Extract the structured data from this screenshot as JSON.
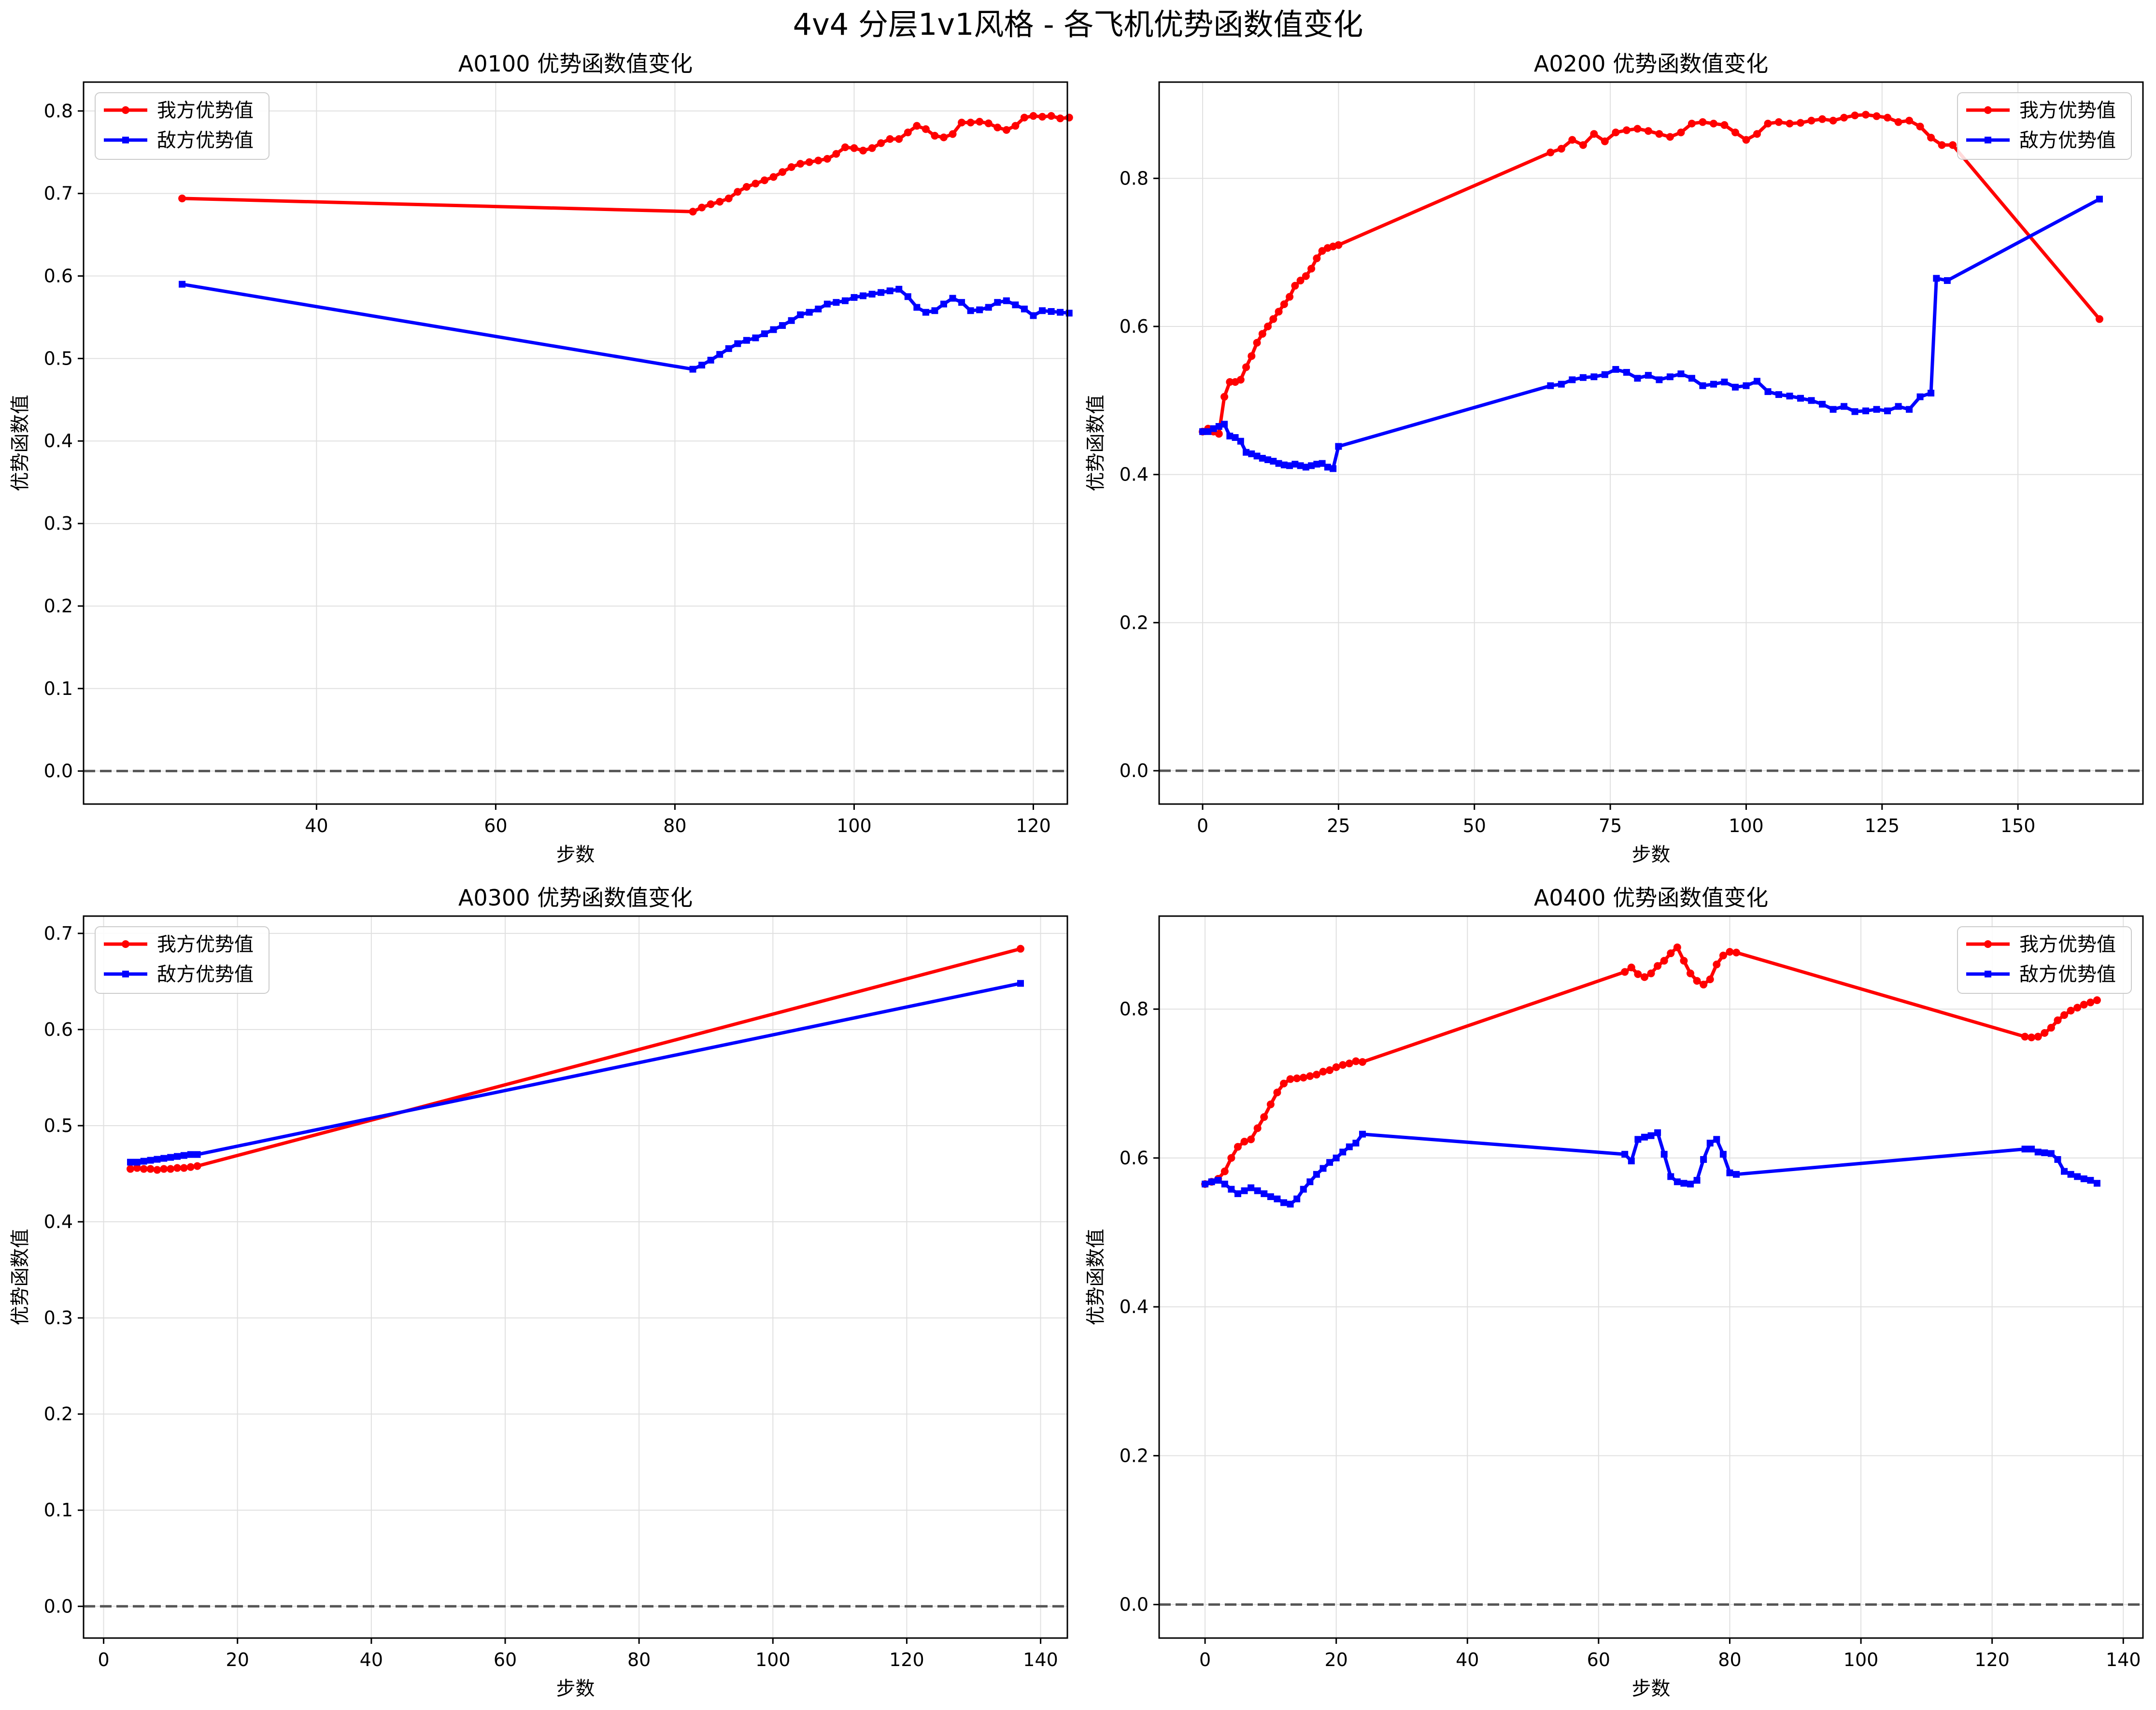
{
  "title": "4v4 分层1v1风格 - 各飞机优势函数值变化",
  "colors": {
    "own": "#ff0000",
    "enemy": "#0000ff",
    "grid": "#e0e0e0",
    "zero_line": "#555555"
  },
  "chart_data": [
    {
      "type": "line",
      "title": "A0100 优势函数值变化",
      "xlabel": "步数",
      "ylabel": "优势函数值",
      "xlim": [
        14,
        123.8
      ],
      "ylim": [
        -0.04,
        0.835
      ],
      "xticks": [
        40,
        60,
        80,
        100,
        120
      ],
      "yticks": [
        0.0,
        0.1,
        0.2,
        0.3,
        0.4,
        0.5,
        0.6,
        0.7,
        0.8
      ],
      "grid": true,
      "legend": "top-left",
      "zero_line": true,
      "series": [
        {
          "name": "我方优势值",
          "color": "#ff0000",
          "marker": "circle",
          "x": [
            25,
            82,
            83,
            84,
            85,
            86,
            87,
            88,
            89,
            90,
            91,
            92,
            93,
            94,
            95,
            96,
            97,
            98,
            99,
            100,
            101,
            102,
            103,
            104,
            105,
            106,
            107,
            108,
            109,
            110,
            111,
            112,
            113,
            114,
            115,
            116,
            117,
            118,
            119,
            120,
            121,
            122,
            123,
            124
          ],
          "y": [
            0.694,
            0.678,
            0.683,
            0.687,
            0.69,
            0.694,
            0.702,
            0.708,
            0.712,
            0.716,
            0.72,
            0.726,
            0.732,
            0.736,
            0.738,
            0.74,
            0.742,
            0.748,
            0.756,
            0.755,
            0.752,
            0.755,
            0.761,
            0.766,
            0.766,
            0.774,
            0.782,
            0.778,
            0.77,
            0.768,
            0.772,
            0.786,
            0.786,
            0.787,
            0.785,
            0.78,
            0.777,
            0.782,
            0.792,
            0.794,
            0.793,
            0.794,
            0.791,
            0.792
          ]
        },
        {
          "name": "敌方优势值",
          "color": "#0000ff",
          "marker": "square",
          "x": [
            25,
            82,
            83,
            84,
            85,
            86,
            87,
            88,
            89,
            90,
            91,
            92,
            93,
            94,
            95,
            96,
            97,
            98,
            99,
            100,
            101,
            102,
            103,
            104,
            105,
            106,
            107,
            108,
            109,
            110,
            111,
            112,
            113,
            114,
            115,
            116,
            117,
            118,
            119,
            120,
            121,
            122,
            123,
            124
          ],
          "y": [
            0.59,
            0.487,
            0.492,
            0.498,
            0.505,
            0.512,
            0.518,
            0.522,
            0.525,
            0.53,
            0.535,
            0.54,
            0.546,
            0.553,
            0.556,
            0.56,
            0.566,
            0.568,
            0.57,
            0.574,
            0.576,
            0.578,
            0.58,
            0.582,
            0.584,
            0.575,
            0.562,
            0.556,
            0.558,
            0.566,
            0.573,
            0.568,
            0.558,
            0.559,
            0.562,
            0.568,
            0.57,
            0.565,
            0.56,
            0.552,
            0.558,
            0.557,
            0.556,
            0.555
          ]
        }
      ]
    },
    {
      "type": "line",
      "title": "A0200 优势函数值变化",
      "xlabel": "步数",
      "ylabel": "优势函数值",
      "xlim": [
        -8,
        173
      ],
      "ylim": [
        -0.045,
        0.93
      ],
      "xticks": [
        0,
        25,
        50,
        75,
        100,
        125,
        150
      ],
      "yticks": [
        0.0,
        0.2,
        0.4,
        0.6,
        0.8
      ],
      "grid": true,
      "legend": "top-right",
      "zero_line": true,
      "series": [
        {
          "name": "我方优势值",
          "color": "#ff0000",
          "marker": "circle",
          "x": [
            0,
            1,
            2,
            3,
            4,
            5,
            6,
            7,
            8,
            9,
            10,
            11,
            12,
            13,
            14,
            15,
            16,
            17,
            18,
            19,
            20,
            21,
            22,
            23,
            24,
            25,
            64,
            66,
            68,
            70,
            72,
            74,
            76,
            78,
            80,
            82,
            84,
            86,
            88,
            90,
            92,
            94,
            96,
            98,
            100,
            102,
            104,
            106,
            108,
            110,
            112,
            114,
            116,
            118,
            120,
            122,
            124,
            126,
            128,
            130,
            132,
            134,
            136,
            138,
            165
          ],
          "y": [
            0.458,
            0.462,
            0.458,
            0.455,
            0.505,
            0.525,
            0.525,
            0.528,
            0.545,
            0.56,
            0.578,
            0.59,
            0.6,
            0.61,
            0.62,
            0.63,
            0.64,
            0.655,
            0.662,
            0.668,
            0.678,
            0.692,
            0.702,
            0.706,
            0.708,
            0.71,
            0.835,
            0.84,
            0.852,
            0.845,
            0.86,
            0.85,
            0.862,
            0.865,
            0.867,
            0.864,
            0.86,
            0.856,
            0.862,
            0.874,
            0.876,
            0.874,
            0.872,
            0.862,
            0.852,
            0.86,
            0.874,
            0.876,
            0.874,
            0.875,
            0.878,
            0.88,
            0.878,
            0.882,
            0.885,
            0.886,
            0.884,
            0.882,
            0.876,
            0.878,
            0.87,
            0.855,
            0.845,
            0.845,
            0.61
          ]
        },
        {
          "name": "敌方优势值",
          "color": "#0000ff",
          "marker": "square",
          "x": [
            0,
            1,
            2,
            3,
            4,
            5,
            6,
            7,
            8,
            9,
            10,
            11,
            12,
            13,
            14,
            15,
            16,
            17,
            18,
            19,
            20,
            21,
            22,
            23,
            24,
            25,
            64,
            66,
            68,
            70,
            72,
            74,
            76,
            78,
            80,
            82,
            84,
            86,
            88,
            90,
            92,
            94,
            96,
            98,
            100,
            102,
            104,
            106,
            108,
            110,
            112,
            114,
            116,
            118,
            120,
            122,
            124,
            126,
            128,
            130,
            132,
            134,
            135,
            137,
            165
          ],
          "y": [
            0.458,
            0.458,
            0.462,
            0.465,
            0.468,
            0.452,
            0.45,
            0.445,
            0.43,
            0.428,
            0.425,
            0.422,
            0.42,
            0.418,
            0.415,
            0.413,
            0.412,
            0.414,
            0.412,
            0.41,
            0.412,
            0.414,
            0.415,
            0.41,
            0.408,
            0.438,
            0.52,
            0.522,
            0.528,
            0.531,
            0.532,
            0.535,
            0.542,
            0.538,
            0.53,
            0.534,
            0.528,
            0.532,
            0.536,
            0.53,
            0.52,
            0.522,
            0.525,
            0.518,
            0.52,
            0.526,
            0.512,
            0.508,
            0.506,
            0.503,
            0.5,
            0.495,
            0.488,
            0.492,
            0.485,
            0.486,
            0.488,
            0.486,
            0.492,
            0.488,
            0.505,
            0.51,
            0.665,
            0.662,
            0.772
          ]
        }
      ]
    },
    {
      "type": "line",
      "title": "A0300 优势函数值变化",
      "xlabel": "步数",
      "ylabel": "优势函数值",
      "xlim": [
        -3,
        144
      ],
      "ylim": [
        -0.033,
        0.718
      ],
      "xticks": [
        0,
        20,
        40,
        60,
        80,
        100,
        120,
        140
      ],
      "yticks": [
        0.0,
        0.1,
        0.2,
        0.3,
        0.4,
        0.5,
        0.6,
        0.7
      ],
      "grid": true,
      "legend": "top-left",
      "zero_line": true,
      "series": [
        {
          "name": "我方优势值",
          "color": "#ff0000",
          "marker": "circle",
          "x": [
            4,
            5,
            6,
            7,
            8,
            9,
            10,
            11,
            12,
            13,
            14,
            137
          ],
          "y": [
            0.455,
            0.456,
            0.455,
            0.455,
            0.454,
            0.455,
            0.455,
            0.456,
            0.456,
            0.457,
            0.458,
            0.684
          ]
        },
        {
          "name": "敌方优势值",
          "color": "#0000ff",
          "marker": "square",
          "x": [
            4,
            5,
            6,
            7,
            8,
            9,
            10,
            11,
            12,
            13,
            14,
            137
          ],
          "y": [
            0.462,
            0.462,
            0.463,
            0.464,
            0.465,
            0.466,
            0.467,
            0.468,
            0.469,
            0.47,
            0.47,
            0.648
          ]
        }
      ]
    },
    {
      "type": "line",
      "title": "A0400 优势函数值变化",
      "xlabel": "步数",
      "ylabel": "优势函数值",
      "xlim": [
        -7,
        143
      ],
      "ylim": [
        -0.045,
        0.925
      ],
      "xticks": [
        0,
        20,
        40,
        60,
        80,
        100,
        120,
        140
      ],
      "yticks": [
        0.0,
        0.2,
        0.4,
        0.6,
        0.8
      ],
      "grid": true,
      "legend": "top-right",
      "zero_line": true,
      "series": [
        {
          "name": "我方优势值",
          "color": "#ff0000",
          "marker": "circle",
          "x": [
            0,
            1,
            2,
            3,
            4,
            5,
            6,
            7,
            8,
            9,
            10,
            11,
            12,
            13,
            14,
            15,
            16,
            17,
            18,
            19,
            20,
            21,
            22,
            23,
            24,
            64,
            65,
            66,
            67,
            68,
            69,
            70,
            71,
            72,
            73,
            74,
            75,
            76,
            77,
            78,
            79,
            80,
            81,
            125,
            126,
            127,
            128,
            129,
            130,
            131,
            132,
            133,
            134,
            135,
            136
          ],
          "y": [
            0.565,
            0.568,
            0.572,
            0.582,
            0.6,
            0.615,
            0.622,
            0.625,
            0.64,
            0.655,
            0.672,
            0.688,
            0.7,
            0.706,
            0.707,
            0.708,
            0.71,
            0.712,
            0.716,
            0.718,
            0.722,
            0.725,
            0.727,
            0.73,
            0.729,
            0.85,
            0.856,
            0.847,
            0.843,
            0.848,
            0.858,
            0.865,
            0.875,
            0.883,
            0.865,
            0.848,
            0.838,
            0.833,
            0.84,
            0.86,
            0.872,
            0.877,
            0.876,
            0.763,
            0.762,
            0.763,
            0.768,
            0.775,
            0.785,
            0.792,
            0.798,
            0.802,
            0.806,
            0.809,
            0.812
          ]
        },
        {
          "name": "敌方优势值",
          "color": "#0000ff",
          "marker": "square",
          "x": [
            0,
            1,
            2,
            3,
            4,
            5,
            6,
            7,
            8,
            9,
            10,
            11,
            12,
            13,
            14,
            15,
            16,
            17,
            18,
            19,
            20,
            21,
            22,
            23,
            24,
            64,
            65,
            66,
            67,
            68,
            69,
            70,
            71,
            72,
            73,
            74,
            75,
            76,
            77,
            78,
            79,
            80,
            81,
            125,
            126,
            127,
            128,
            129,
            130,
            131,
            132,
            133,
            134,
            135,
            136
          ],
          "y": [
            0.565,
            0.568,
            0.57,
            0.565,
            0.558,
            0.552,
            0.556,
            0.56,
            0.556,
            0.552,
            0.548,
            0.545,
            0.54,
            0.538,
            0.545,
            0.558,
            0.568,
            0.578,
            0.586,
            0.594,
            0.6,
            0.608,
            0.615,
            0.62,
            0.632,
            0.605,
            0.596,
            0.625,
            0.628,
            0.63,
            0.634,
            0.605,
            0.575,
            0.568,
            0.566,
            0.565,
            0.57,
            0.598,
            0.62,
            0.625,
            0.605,
            0.58,
            0.578,
            0.612,
            0.612,
            0.608,
            0.607,
            0.606,
            0.598,
            0.582,
            0.578,
            0.575,
            0.572,
            0.57,
            0.566
          ]
        }
      ]
    }
  ]
}
